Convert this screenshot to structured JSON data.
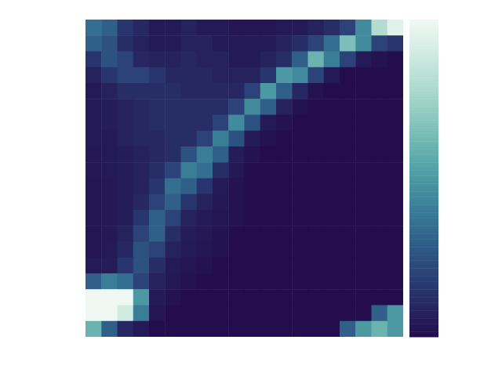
{
  "chart_data": {
    "type": "heatmap",
    "tick_labels": false,
    "zlim": [
      0,
      1
    ],
    "z": [
      [
        0.35,
        0.3,
        0.15,
        0.1,
        0.05,
        0.05,
        0.08,
        0.05,
        0.05,
        0.03,
        0.03,
        0.03,
        0.05,
        0.05,
        0.08,
        0.12,
        0.2,
        0.45,
        0.8,
        0.95
      ],
      [
        0.3,
        0.25,
        0.12,
        0.08,
        0.05,
        0.05,
        0.08,
        0.08,
        0.05,
        0.05,
        0.05,
        0.05,
        0.08,
        0.12,
        0.2,
        0.35,
        0.65,
        0.45,
        0.2,
        0.15
      ],
      [
        0.15,
        0.25,
        0.2,
        0.1,
        0.08,
        0.08,
        0.1,
        0.08,
        0.08,
        0.05,
        0.05,
        0.08,
        0.12,
        0.3,
        0.6,
        0.4,
        0.2,
        0.05,
        0.02,
        0
      ],
      [
        0.08,
        0.15,
        0.2,
        0.2,
        0.15,
        0.1,
        0.1,
        0.1,
        0.08,
        0.08,
        0.08,
        0.15,
        0.5,
        0.45,
        0.2,
        0.05,
        0,
        0,
        0,
        0
      ],
      [
        0.05,
        0.08,
        0.12,
        0.12,
        0.12,
        0.12,
        0.1,
        0.1,
        0.1,
        0.1,
        0.2,
        0.5,
        0.3,
        0.1,
        0.02,
        0,
        0,
        0,
        0,
        0
      ],
      [
        0.05,
        0.06,
        0.08,
        0.1,
        0.12,
        0.12,
        0.12,
        0.12,
        0.12,
        0.2,
        0.45,
        0.3,
        0.08,
        0.02,
        0,
        0,
        0,
        0,
        0,
        0
      ],
      [
        0.05,
        0.06,
        0.08,
        0.1,
        0.12,
        0.12,
        0.12,
        0.12,
        0.2,
        0.45,
        0.25,
        0.05,
        0.02,
        0,
        0,
        0,
        0,
        0,
        0,
        0
      ],
      [
        0.05,
        0.05,
        0.08,
        0.1,
        0.1,
        0.12,
        0.12,
        0.2,
        0.4,
        0.25,
        0.05,
        0.02,
        0,
        0,
        0,
        0,
        0,
        0,
        0,
        0
      ],
      [
        0.04,
        0.05,
        0.06,
        0.08,
        0.1,
        0.12,
        0.25,
        0.4,
        0.3,
        0.06,
        0.02,
        0,
        0,
        0,
        0,
        0,
        0,
        0,
        0,
        0
      ],
      [
        0.04,
        0.05,
        0.06,
        0.08,
        0.12,
        0.2,
        0.4,
        0.35,
        0.12,
        0.04,
        0,
        0,
        0,
        0,
        0,
        0,
        0,
        0,
        0,
        0
      ],
      [
        0.03,
        0.04,
        0.06,
        0.08,
        0.15,
        0.35,
        0.3,
        0.15,
        0.05,
        0.02,
        0,
        0,
        0,
        0,
        0,
        0,
        0,
        0,
        0,
        0
      ],
      [
        0.03,
        0.04,
        0.06,
        0.1,
        0.2,
        0.3,
        0.15,
        0.08,
        0.04,
        0.02,
        0,
        0,
        0,
        0,
        0,
        0,
        0,
        0,
        0,
        0
      ],
      [
        0.03,
        0.04,
        0.06,
        0.15,
        0.3,
        0.2,
        0.08,
        0.05,
        0.03,
        0.02,
        0,
        0,
        0,
        0,
        0,
        0,
        0,
        0,
        0,
        0
      ],
      [
        0.03,
        0.04,
        0.08,
        0.2,
        0.3,
        0.12,
        0.06,
        0.04,
        0.02,
        0,
        0,
        0,
        0,
        0,
        0,
        0,
        0,
        0,
        0,
        0
      ],
      [
        0.03,
        0.05,
        0.1,
        0.25,
        0.2,
        0.08,
        0.05,
        0.03,
        0.02,
        0,
        0,
        0,
        0,
        0,
        0,
        0,
        0,
        0,
        0,
        0
      ],
      [
        0.05,
        0.06,
        0.15,
        0.25,
        0.12,
        0.05,
        0.03,
        0.02,
        0,
        0,
        0,
        0,
        0,
        0,
        0,
        0,
        0,
        0,
        0,
        0
      ],
      [
        0.3,
        0.4,
        0.35,
        0.2,
        0.08,
        0.04,
        0.02,
        0,
        0,
        0,
        0,
        0,
        0,
        0,
        0,
        0,
        0,
        0,
        0,
        0
      ],
      [
        1,
        1,
        1,
        0.5,
        0.05,
        0.02,
        0,
        0,
        0,
        0,
        0,
        0,
        0,
        0,
        0,
        0,
        0,
        0,
        0,
        0
      ],
      [
        1,
        1,
        0.9,
        0.4,
        0.03,
        0,
        0,
        0,
        0,
        0,
        0,
        0,
        0,
        0,
        0,
        0,
        0,
        0,
        0.3,
        0.5
      ],
      [
        0.6,
        0.3,
        0.1,
        0.05,
        0,
        0,
        0,
        0,
        0,
        0,
        0,
        0,
        0,
        0,
        0,
        0,
        0.3,
        0.5,
        0.6,
        0.5
      ]
    ]
  }
}
